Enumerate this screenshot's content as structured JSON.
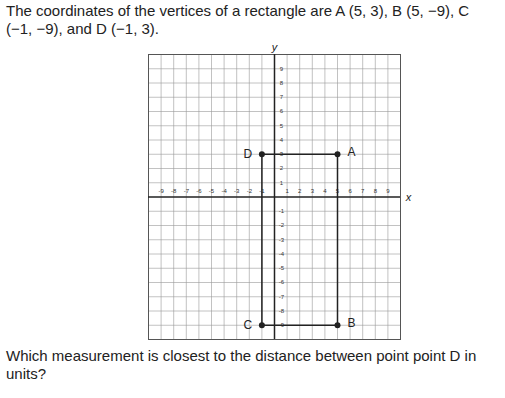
{
  "title": "The coordinates of the vertices of a rectangle are A (5, 3), B (5, −9), C (−1, −9), and D (−1, 3).",
  "question": "Which measurement is closest to the distance between point point D in units?",
  "chart_data": {
    "type": "line",
    "x": [
      5,
      5,
      -1,
      -1
    ],
    "values": [
      3,
      -9,
      -9,
      3
    ],
    "labels": [
      "A",
      "B",
      "C",
      "D"
    ],
    "color": "#222222",
    "marker": "circle",
    "x_label": "x",
    "y_label": "y",
    "xlim": [
      -10,
      10
    ],
    "ylim": [
      -10,
      10
    ],
    "xticks": [
      -9,
      -8,
      -7,
      -6,
      -5,
      -4,
      -3,
      -2,
      -1,
      1,
      2,
      3,
      4,
      5,
      6,
      7,
      8,
      9
    ],
    "yticks": [
      -9,
      -8,
      -7,
      -6,
      -5,
      -4,
      -3,
      -2,
      -1,
      1,
      2,
      3,
      4,
      5,
      6,
      7,
      8,
      9
    ],
    "grid": true
  }
}
